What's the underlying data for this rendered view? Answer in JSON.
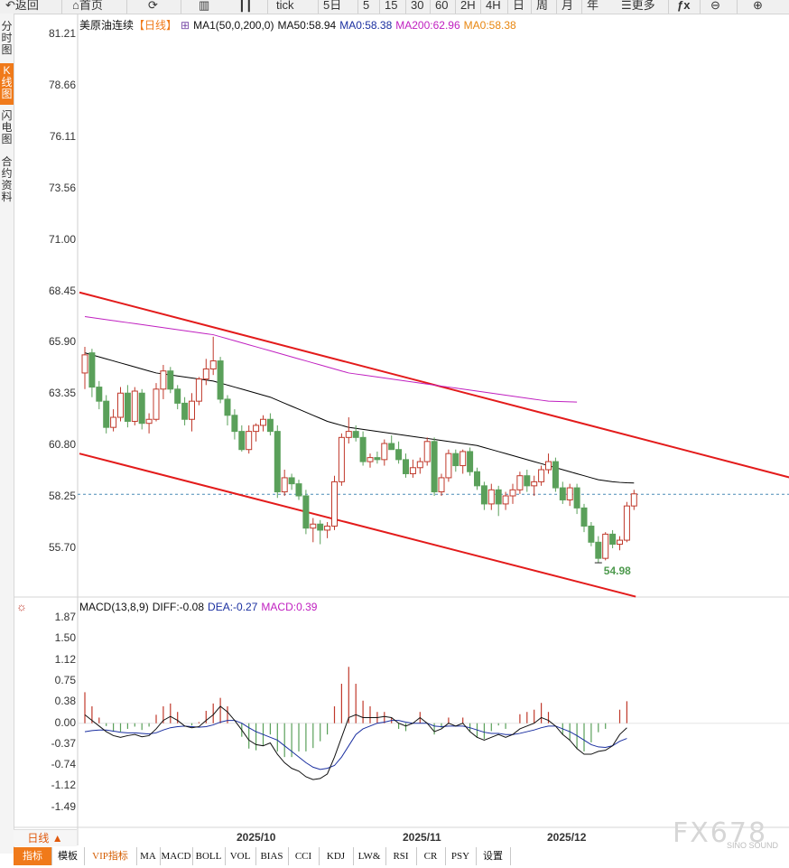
{
  "toolbar": {
    "back": "返回",
    "home": "首页",
    "periods": [
      "tick",
      "5日",
      "5",
      "15",
      "30",
      "60",
      "2H",
      "4H",
      "日",
      "周",
      "月",
      "年"
    ],
    "more": "更多",
    "fx": "ƒx"
  },
  "sidebar": [
    "分时图",
    "K线图",
    "闪电图",
    "合约资料"
  ],
  "legend": {
    "instrument": "美原油连续",
    "period": "【日线】",
    "ma1": "MA1(50,0,200,0)",
    "ma50": "MA50:58.94",
    "ma0a": "MA0:58.38",
    "ma200": "MA200:62.96",
    "ma0b": "MA0:58.38"
  },
  "price_axis": [
    "81.21",
    "78.66",
    "76.11",
    "73.56",
    "71.00",
    "68.45",
    "65.90",
    "63.35",
    "60.80",
    "58.25",
    "55.70"
  ],
  "low_label": "54.98",
  "macd_legend": {
    "title": "MACD(13,8,9)",
    "diff": "DIFF:-0.08",
    "dea": "DEA:-0.27",
    "macd": "MACD:0.39"
  },
  "macd_axis": [
    "1.87",
    "1.50",
    "1.12",
    "0.75",
    "0.38",
    "0.00",
    "-0.37",
    "-0.74",
    "-1.12",
    "-1.49"
  ],
  "x_axis": [
    "2025/10",
    "2025/11",
    "2025/12"
  ],
  "bottom_tabs": [
    "指标",
    "模板",
    "VIP指标",
    "MA",
    "MACD",
    "BOLL",
    "VOL",
    "BIAS",
    "CCI",
    "KDJ",
    "LW&",
    "RSI",
    "CR",
    "PSY",
    "设置"
  ],
  "day_button": "日线 ▲",
  "watermark": "FX678",
  "watermark_sub": "SINO SOUND",
  "colors": {
    "up": "#c0392b",
    "down": "#5aa05a",
    "ma50": "#000000",
    "ma200": "#c020c0",
    "channel": "#e31b1b",
    "accent": "#f07a1a"
  },
  "chart_data": {
    "type": "candlestick",
    "instrument": "美原油连续",
    "period": "日线",
    "ylim": [
      54.5,
      81.21
    ],
    "last_price": 58.38,
    "period_low": 54.98,
    "candles": [
      {
        "o": 64.4,
        "h": 65.7,
        "l": 63.6,
        "c": 65.3
      },
      {
        "o": 65.4,
        "h": 65.6,
        "l": 63.2,
        "c": 63.7
      },
      {
        "o": 63.7,
        "h": 64.0,
        "l": 62.6,
        "c": 63.0
      },
      {
        "o": 63.0,
        "h": 63.3,
        "l": 61.4,
        "c": 61.7
      },
      {
        "o": 61.7,
        "h": 62.6,
        "l": 61.5,
        "c": 62.2
      },
      {
        "o": 62.2,
        "h": 63.7,
        "l": 62.0,
        "c": 63.4
      },
      {
        "o": 63.4,
        "h": 63.8,
        "l": 61.7,
        "c": 62.0
      },
      {
        "o": 62.0,
        "h": 63.7,
        "l": 61.8,
        "c": 63.5
      },
      {
        "o": 63.4,
        "h": 63.6,
        "l": 61.6,
        "c": 61.9
      },
      {
        "o": 61.9,
        "h": 62.4,
        "l": 61.4,
        "c": 62.1
      },
      {
        "o": 62.1,
        "h": 63.9,
        "l": 62.0,
        "c": 63.6
      },
      {
        "o": 63.6,
        "h": 64.8,
        "l": 63.1,
        "c": 64.5
      },
      {
        "o": 64.5,
        "h": 64.7,
        "l": 63.4,
        "c": 63.6
      },
      {
        "o": 63.6,
        "h": 63.8,
        "l": 62.6,
        "c": 62.9
      },
      {
        "o": 62.9,
        "h": 63.2,
        "l": 61.8,
        "c": 62.1
      },
      {
        "o": 62.1,
        "h": 63.4,
        "l": 61.5,
        "c": 63.0
      },
      {
        "o": 63.0,
        "h": 64.2,
        "l": 62.8,
        "c": 64.1
      },
      {
        "o": 64.1,
        "h": 65.1,
        "l": 63.8,
        "c": 64.6
      },
      {
        "o": 64.6,
        "h": 66.2,
        "l": 64.3,
        "c": 65.0
      },
      {
        "o": 65.0,
        "h": 65.2,
        "l": 62.9,
        "c": 63.1
      },
      {
        "o": 63.1,
        "h": 63.3,
        "l": 61.8,
        "c": 62.3
      },
      {
        "o": 62.3,
        "h": 62.6,
        "l": 61.1,
        "c": 61.5
      },
      {
        "o": 61.5,
        "h": 61.8,
        "l": 60.5,
        "c": 60.6
      },
      {
        "o": 60.6,
        "h": 61.8,
        "l": 60.4,
        "c": 61.5
      },
      {
        "o": 61.5,
        "h": 61.9,
        "l": 61.0,
        "c": 61.8
      },
      {
        "o": 61.8,
        "h": 62.3,
        "l": 61.5,
        "c": 62.1
      },
      {
        "o": 62.1,
        "h": 62.4,
        "l": 61.3,
        "c": 61.5
      },
      {
        "o": 61.5,
        "h": 61.8,
        "l": 58.2,
        "c": 58.5
      },
      {
        "o": 58.5,
        "h": 59.6,
        "l": 58.3,
        "c": 59.2
      },
      {
        "o": 59.2,
        "h": 59.4,
        "l": 58.6,
        "c": 58.9
      },
      {
        "o": 58.9,
        "h": 59.1,
        "l": 58.1,
        "c": 58.3
      },
      {
        "o": 58.3,
        "h": 58.6,
        "l": 56.4,
        "c": 56.7
      },
      {
        "o": 56.7,
        "h": 57.2,
        "l": 56.0,
        "c": 56.9
      },
      {
        "o": 56.9,
        "h": 57.1,
        "l": 55.9,
        "c": 56.6
      },
      {
        "o": 56.6,
        "h": 57.0,
        "l": 56.2,
        "c": 56.8
      },
      {
        "o": 56.8,
        "h": 59.3,
        "l": 56.6,
        "c": 59.0
      },
      {
        "o": 59.0,
        "h": 61.4,
        "l": 58.8,
        "c": 61.2
      },
      {
        "o": 61.2,
        "h": 62.2,
        "l": 60.9,
        "c": 61.5
      },
      {
        "o": 61.5,
        "h": 61.8,
        "l": 61.0,
        "c": 61.2
      },
      {
        "o": 61.2,
        "h": 61.5,
        "l": 59.8,
        "c": 60.0
      },
      {
        "o": 60.0,
        "h": 60.4,
        "l": 59.7,
        "c": 60.2
      },
      {
        "o": 60.2,
        "h": 60.5,
        "l": 59.9,
        "c": 60.1
      },
      {
        "o": 60.1,
        "h": 61.1,
        "l": 59.8,
        "c": 60.9
      },
      {
        "o": 60.9,
        "h": 61.3,
        "l": 60.6,
        "c": 60.6
      },
      {
        "o": 60.6,
        "h": 61.0,
        "l": 59.9,
        "c": 60.1
      },
      {
        "o": 60.1,
        "h": 60.4,
        "l": 59.2,
        "c": 59.4
      },
      {
        "o": 59.4,
        "h": 60.1,
        "l": 59.2,
        "c": 59.7
      },
      {
        "o": 59.7,
        "h": 60.2,
        "l": 59.4,
        "c": 60.0
      },
      {
        "o": 60.0,
        "h": 61.2,
        "l": 59.8,
        "c": 61.0
      },
      {
        "o": 61.0,
        "h": 61.2,
        "l": 58.3,
        "c": 58.5
      },
      {
        "o": 58.5,
        "h": 59.4,
        "l": 58.3,
        "c": 59.2
      },
      {
        "o": 59.2,
        "h": 60.6,
        "l": 59.0,
        "c": 60.4
      },
      {
        "o": 60.4,
        "h": 60.6,
        "l": 59.5,
        "c": 59.8
      },
      {
        "o": 59.8,
        "h": 60.6,
        "l": 59.4,
        "c": 60.5
      },
      {
        "o": 60.5,
        "h": 60.7,
        "l": 59.3,
        "c": 59.5
      },
      {
        "o": 59.5,
        "h": 59.7,
        "l": 58.6,
        "c": 58.8
      },
      {
        "o": 58.8,
        "h": 59.0,
        "l": 57.6,
        "c": 57.9
      },
      {
        "o": 57.9,
        "h": 58.9,
        "l": 57.6,
        "c": 58.6
      },
      {
        "o": 58.6,
        "h": 58.8,
        "l": 57.3,
        "c": 57.9
      },
      {
        "o": 57.9,
        "h": 58.5,
        "l": 57.6,
        "c": 58.3
      },
      {
        "o": 58.3,
        "h": 58.9,
        "l": 57.9,
        "c": 58.6
      },
      {
        "o": 58.6,
        "h": 59.5,
        "l": 58.4,
        "c": 59.3
      },
      {
        "o": 59.3,
        "h": 59.6,
        "l": 58.5,
        "c": 58.8
      },
      {
        "o": 58.8,
        "h": 59.3,
        "l": 58.3,
        "c": 59.0
      },
      {
        "o": 59.0,
        "h": 59.8,
        "l": 58.8,
        "c": 59.6
      },
      {
        "o": 59.6,
        "h": 60.4,
        "l": 59.4,
        "c": 60.0
      },
      {
        "o": 60.0,
        "h": 60.2,
        "l": 58.5,
        "c": 58.7
      },
      {
        "o": 58.7,
        "h": 59.0,
        "l": 57.9,
        "c": 58.1
      },
      {
        "o": 58.1,
        "h": 58.9,
        "l": 57.8,
        "c": 58.7
      },
      {
        "o": 58.7,
        "h": 58.9,
        "l": 57.4,
        "c": 57.7
      },
      {
        "o": 57.7,
        "h": 57.9,
        "l": 56.5,
        "c": 56.8
      },
      {
        "o": 56.8,
        "h": 57.0,
        "l": 55.8,
        "c": 56.0
      },
      {
        "o": 56.0,
        "h": 56.3,
        "l": 54.98,
        "c": 55.2
      },
      {
        "o": 55.2,
        "h": 56.5,
        "l": 55.1,
        "c": 56.4
      },
      {
        "o": 56.4,
        "h": 56.6,
        "l": 55.7,
        "c": 55.9
      },
      {
        "o": 55.9,
        "h": 56.3,
        "l": 55.6,
        "c": 56.1
      },
      {
        "o": 56.1,
        "h": 58.0,
        "l": 56.0,
        "c": 57.8
      },
      {
        "o": 57.8,
        "h": 58.6,
        "l": 57.6,
        "c": 58.4
      }
    ],
    "ma50": [
      65.4,
      65.3,
      65.2,
      65.1,
      65.0,
      64.9,
      64.8,
      64.7,
      64.6,
      64.5,
      64.4,
      64.35,
      64.3,
      64.25,
      64.2,
      64.15,
      64.1,
      64.05,
      64.0,
      63.9,
      63.8,
      63.7,
      63.6,
      63.5,
      63.4,
      63.3,
      63.2,
      63.05,
      62.9,
      62.75,
      62.6,
      62.45,
      62.3,
      62.15,
      62.0,
      61.9,
      61.8,
      61.7,
      61.65,
      61.6,
      61.55,
      61.5,
      61.45,
      61.4,
      61.35,
      61.3,
      61.25,
      61.2,
      61.15,
      61.1,
      61.05,
      61.0,
      60.95,
      60.9,
      60.85,
      60.8,
      60.7,
      60.6,
      60.5,
      60.4,
      60.3,
      60.2,
      60.1,
      60.0,
      59.9,
      59.8,
      59.7,
      59.6,
      59.5,
      59.4,
      59.3,
      59.2,
      59.1,
      59.05,
      59.0,
      58.97,
      58.95,
      58.94
    ],
    "ma200": [
      67.2,
      67.15,
      67.1,
      67.05,
      67.0,
      66.95,
      66.9,
      66.85,
      66.8,
      66.75,
      66.7,
      66.65,
      66.6,
      66.55,
      66.5,
      66.45,
      66.4,
      66.35,
      66.3,
      66.2,
      66.1,
      66.0,
      65.9,
      65.8,
      65.7,
      65.6,
      65.5,
      65.4,
      65.3,
      65.2,
      65.1,
      65.0,
      64.9,
      64.8,
      64.7,
      64.6,
      64.5,
      64.4,
      64.35,
      64.3,
      64.25,
      64.2,
      64.15,
      64.1,
      64.05,
      64.0,
      63.95,
      63.9,
      63.85,
      63.8,
      63.75,
      63.7,
      63.65,
      63.6,
      63.55,
      63.5,
      63.45,
      63.4,
      63.35,
      63.3,
      63.25,
      63.2,
      63.15,
      63.1,
      63.05,
      63.0,
      62.99,
      62.98,
      62.97,
      62.96
    ],
    "channel_upper": [
      {
        "i": 0,
        "v": 68.4
      },
      {
        "i": 103,
        "v": 58.9
      }
    ],
    "channel_lower": [
      {
        "i": 0,
        "v": 60.4
      },
      {
        "i": 78,
        "v": 53.3
      }
    ],
    "macd": {
      "ylim": [
        -1.49,
        1.87
      ],
      "diff": [
        0.15,
        0.05,
        -0.05,
        -0.15,
        -0.22,
        -0.25,
        -0.22,
        -0.2,
        -0.24,
        -0.22,
        -0.1,
        0.05,
        0.12,
        0.05,
        -0.05,
        -0.08,
        -0.06,
        0.05,
        0.15,
        0.3,
        0.2,
        0.05,
        -0.12,
        -0.3,
        -0.38,
        -0.4,
        -0.35,
        -0.55,
        -0.7,
        -0.8,
        -0.85,
        -0.95,
        -1.0,
        -0.98,
        -0.9,
        -0.6,
        -0.25,
        0.1,
        0.15,
        0.1,
        0.1,
        0.1,
        0.12,
        0.1,
        0.0,
        -0.05,
        0.0,
        0.1,
        0.0,
        -0.15,
        -0.1,
        0.0,
        -0.05,
        0.0,
        -0.15,
        -0.25,
        -0.3,
        -0.25,
        -0.2,
        -0.25,
        -0.2,
        -0.1,
        -0.05,
        0.0,
        0.1,
        0.05,
        -0.05,
        -0.2,
        -0.3,
        -0.45,
        -0.55,
        -0.55,
        -0.5,
        -0.48,
        -0.4,
        -0.2,
        -0.08
      ],
      "dea": [
        -0.15,
        -0.13,
        -0.12,
        -0.12,
        -0.14,
        -0.16,
        -0.17,
        -0.17,
        -0.18,
        -0.19,
        -0.17,
        -0.12,
        -0.08,
        -0.06,
        -0.05,
        -0.06,
        -0.07,
        -0.06,
        -0.03,
        0.02,
        0.05,
        0.05,
        0.0,
        -0.08,
        -0.15,
        -0.2,
        -0.25,
        -0.3,
        -0.4,
        -0.5,
        -0.6,
        -0.7,
        -0.78,
        -0.82,
        -0.8,
        -0.75,
        -0.6,
        -0.4,
        -0.2,
        -0.1,
        -0.05,
        0.0,
        0.02,
        0.05,
        0.05,
        0.02,
        0.0,
        0.0,
        0.0,
        -0.05,
        -0.06,
        -0.05,
        -0.05,
        -0.05,
        -0.08,
        -0.12,
        -0.16,
        -0.18,
        -0.18,
        -0.2,
        -0.2,
        -0.18,
        -0.15,
        -0.12,
        -0.08,
        -0.05,
        -0.05,
        -0.1,
        -0.15,
        -0.22,
        -0.3,
        -0.38,
        -0.42,
        -0.43,
        -0.4,
        -0.32,
        -0.27
      ],
      "hist": [
        0.55,
        0.3,
        0.1,
        -0.05,
        -0.15,
        -0.15,
        -0.1,
        -0.06,
        -0.12,
        -0.06,
        0.15,
        0.3,
        0.35,
        0.2,
        0.0,
        -0.04,
        0.02,
        0.22,
        0.35,
        0.45,
        0.3,
        0.0,
        -0.24,
        -0.45,
        -0.48,
        -0.4,
        -0.2,
        -0.5,
        -0.6,
        -0.6,
        -0.5,
        -0.5,
        -0.44,
        -0.32,
        -0.2,
        0.3,
        0.7,
        1.0,
        0.7,
        0.4,
        0.3,
        0.2,
        0.2,
        0.1,
        -0.1,
        -0.14,
        0.0,
        0.2,
        0.0,
        -0.2,
        -0.08,
        0.1,
        0.0,
        0.1,
        -0.14,
        -0.26,
        -0.28,
        -0.14,
        -0.04,
        -0.1,
        0.0,
        0.16,
        0.2,
        0.24,
        0.36,
        0.2,
        0.0,
        -0.2,
        -0.3,
        -0.46,
        -0.5,
        -0.34,
        -0.16,
        -0.1,
        0.0,
        0.24,
        0.39
      ]
    }
  }
}
